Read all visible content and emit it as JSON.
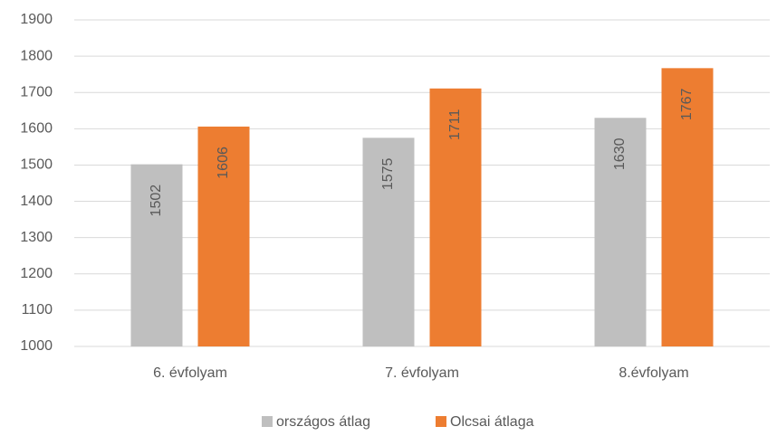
{
  "chart_data": {
    "type": "bar",
    "categories": [
      "6. évfolyam",
      "7. évfolyam",
      "8.évfolyam"
    ],
    "series": [
      {
        "name": "országos átlag",
        "color": "#bfbfbf",
        "values": [
          1502,
          1575,
          1630
        ]
      },
      {
        "name": "Olcsai átlaga",
        "color": "#ed7d31",
        "values": [
          1606,
          1711,
          1767
        ]
      }
    ],
    "ylim": [
      1000,
      1900
    ],
    "yticks": [
      1000,
      1100,
      1200,
      1300,
      1400,
      1500,
      1600,
      1700,
      1800,
      1900
    ],
    "grid": true,
    "legend": "bottom",
    "data_labels": true
  }
}
